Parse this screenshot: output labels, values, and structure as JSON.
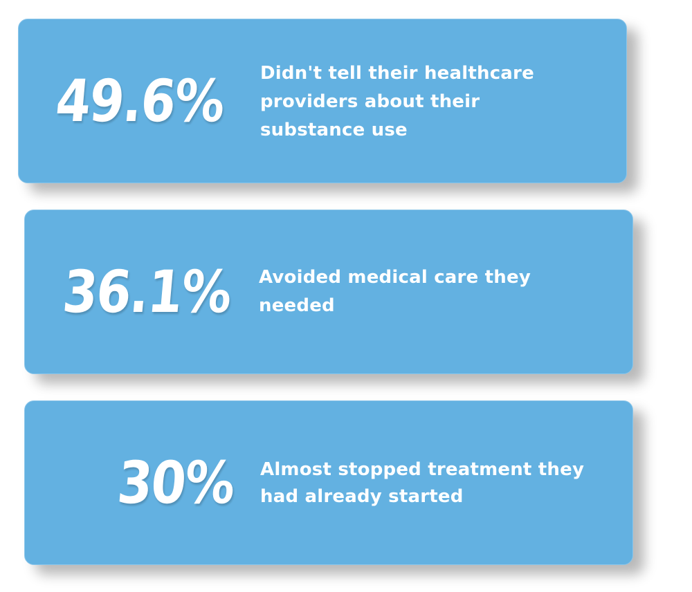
{
  "stats": [
    {
      "value": "49.6%",
      "description": "Didn't tell their healthcare providers about their substance use"
    },
    {
      "value": "36.1%",
      "description": "Avoided medical care they needed"
    },
    {
      "value": "30%",
      "description": "Almost stopped treatment they had already started"
    }
  ],
  "colors": {
    "card_background": "#63b1e1",
    "text": "#ffffff",
    "page_background": "#ffffff"
  }
}
